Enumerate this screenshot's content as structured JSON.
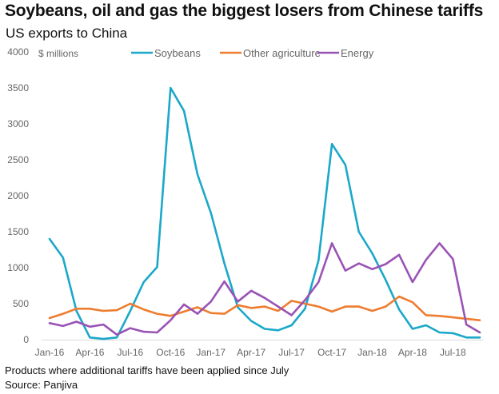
{
  "header": {
    "title": "Soybeans, oil and gas the biggest losers from Chinese tariffs",
    "subtitle": "US exports to China"
  },
  "footer": {
    "note": "Products where additional tariffs have been applied since July",
    "source": "Source: Panjiva"
  },
  "chart_data": {
    "type": "line",
    "ylabel": "$ millions",
    "ylim": [
      0,
      4000
    ],
    "yticks": [
      0,
      500,
      1000,
      1500,
      2000,
      2500,
      3000,
      3500,
      4000
    ],
    "x": [
      "Jan-16",
      "Feb-16",
      "Mar-16",
      "Apr-16",
      "May-16",
      "Jun-16",
      "Jul-16",
      "Aug-16",
      "Sep-16",
      "Oct-16",
      "Nov-16",
      "Dec-16",
      "Jan-17",
      "Feb-17",
      "Mar-17",
      "Apr-17",
      "May-17",
      "Jun-17",
      "Jul-17",
      "Aug-17",
      "Sep-17",
      "Oct-17",
      "Nov-17",
      "Dec-17",
      "Jan-18",
      "Feb-18",
      "Mar-18",
      "Apr-18",
      "May-18",
      "Jun-18",
      "Jul-18",
      "Aug-18",
      "Sep-18"
    ],
    "xticks": [
      "Jan-16",
      "Apr-16",
      "Jul-16",
      "Oct-16",
      "Jan-17",
      "Apr-17",
      "Jul-17",
      "Oct-17",
      "Jan-18",
      "Apr-18",
      "Jul-18"
    ],
    "legend_position": "top",
    "grid": false,
    "series": [
      {
        "name": "Soybeans",
        "color": "#1ba8c9",
        "values": [
          1400,
          1140,
          400,
          30,
          10,
          30,
          400,
          800,
          1010,
          3500,
          3180,
          2300,
          1760,
          1060,
          450,
          260,
          150,
          130,
          200,
          430,
          1100,
          2720,
          2430,
          1500,
          1200,
          830,
          420,
          150,
          200,
          100,
          90,
          30,
          30
        ]
      },
      {
        "name": "Other agriculture",
        "color": "#ee7d30",
        "values": [
          300,
          360,
          430,
          430,
          400,
          410,
          500,
          420,
          360,
          330,
          390,
          450,
          370,
          360,
          480,
          440,
          460,
          400,
          540,
          500,
          460,
          390,
          460,
          460,
          400,
          460,
          600,
          520,
          340,
          330,
          310,
          290,
          270
        ]
      },
      {
        "name": "Energy",
        "color": "#9a53b5",
        "values": [
          230,
          190,
          250,
          180,
          210,
          70,
          160,
          110,
          100,
          270,
          490,
          360,
          530,
          810,
          530,
          680,
          580,
          460,
          340,
          550,
          800,
          1340,
          960,
          1060,
          980,
          1050,
          1180,
          800,
          1110,
          1340,
          1120,
          210,
          100
        ]
      }
    ]
  }
}
